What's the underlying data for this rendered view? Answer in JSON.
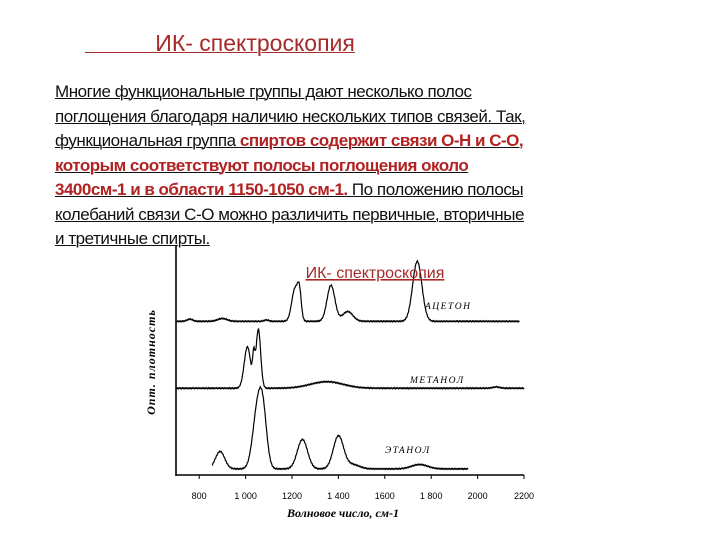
{
  "slide": {
    "title": "           ИК- спектроскопия",
    "lines": [
      [
        {
          "text": "Многие функциональные группы дают несколько полос",
          "em": false
        }
      ],
      [
        {
          "text": "поглощения благодаря наличию нескольких типов связей. Так, ",
          "em": false
        }
      ],
      [
        {
          "text": "функциональная группа ",
          "em": false
        },
        {
          "text": "спиртов содержит связи О-Н и С-О,",
          "em": true
        }
      ],
      [
        {
          "text": "которым соответствуют полосы поглощения около",
          "em": true
        }
      ],
      [
        {
          "text": "3400см-1 и в области 1150-1050 см-1. ",
          "em": true
        },
        {
          "text": "По положению  полосы",
          "em": false
        }
      ],
      [
        {
          "text": "колебаний связи С-О можно различить первичные, вторичные",
          "em": false
        }
      ],
      [
        {
          "text": "и третичные спирты.",
          "em": false
        }
      ]
    ],
    "colors": {
      "accent": "#a52a2a",
      "text": "#111111"
    }
  },
  "chart_data": {
    "type": "line",
    "title": "ИК- спектроскопия",
    "xlabel": "Волновое число, см-1",
    "ylabel": "Опт. плотность",
    "xlim": [
      700,
      2200
    ],
    "ylim": [
      0,
      100
    ],
    "xticks": [
      800,
      1000,
      1200,
      1400,
      1600,
      1800,
      2000,
      2200
    ],
    "xtick_labels": [
      "800",
      "1 000",
      "1200",
      "1 400",
      "1600",
      "1 800",
      "2000",
      "2200"
    ],
    "grid": false,
    "series": [
      {
        "name": "АЦЕТОН",
        "range": [
          700,
          2180
        ],
        "baseline": 70.5,
        "peaks": [
          [
            760,
            1,
            12
          ],
          [
            900,
            1.3,
            20
          ],
          [
            1090,
            0.6,
            10
          ],
          [
            1213,
            15,
            14
          ],
          [
            1232,
            11,
            8
          ],
          [
            1368,
            16.5,
            17
          ],
          [
            1440,
            4.5,
            22
          ],
          [
            1740,
            27.5,
            20
          ]
        ]
      },
      {
        "name": "МЕТАНОЛ",
        "range": [
          700,
          2200
        ],
        "baseline": 39.8,
        "peaks": [
          [
            1008,
            19,
            14
          ],
          [
            1035,
            12,
            5
          ],
          [
            1055,
            27,
            10
          ],
          [
            1350,
            3,
            70
          ],
          [
            2080,
            0.6,
            15
          ]
        ]
      },
      {
        "name": "ЭТАНОЛ",
        "range": [
          855,
          1960
        ],
        "baseline": 2.8,
        "peaks": [
          [
            890,
            8,
            20
          ],
          [
            1050,
            25,
            20
          ],
          [
            1075,
            22,
            17
          ],
          [
            1245,
            13.5,
            22
          ],
          [
            1400,
            15,
            22
          ],
          [
            1460,
            2,
            30
          ],
          [
            1750,
            2,
            35
          ]
        ]
      }
    ]
  }
}
